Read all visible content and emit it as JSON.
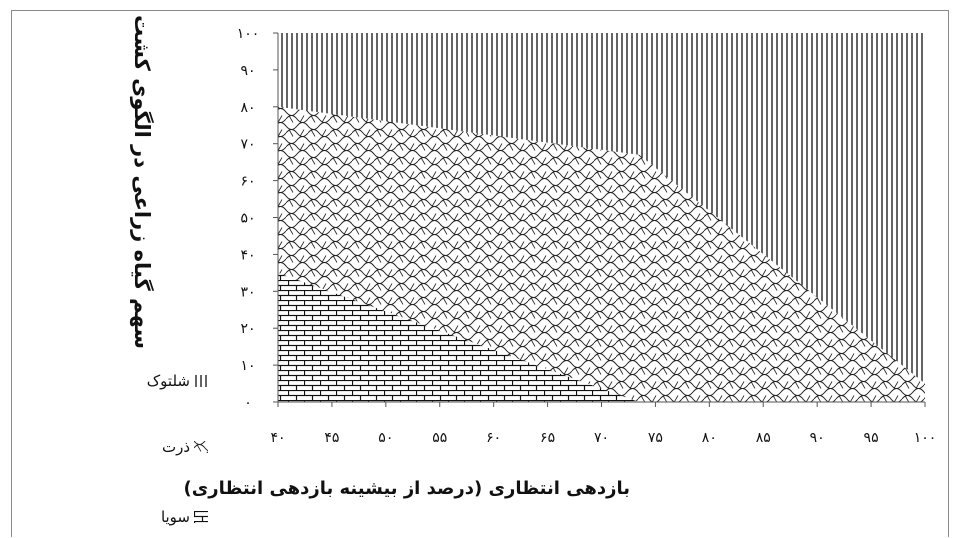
{
  "chart_data": {
    "type": "area",
    "stacked": true,
    "xlabel": "بازدهی انتظاری (درصد از بیشینه بازدهی انتظاری)",
    "ylabel": "سهم گیاه زراعی در الگوی کشت",
    "xlim": [
      40,
      100
    ],
    "ylim": [
      0,
      100
    ],
    "x_ticks": [
      40,
      45,
      50,
      55,
      60,
      65,
      70,
      75,
      80,
      85,
      90,
      95,
      100
    ],
    "y_ticks": [
      0,
      10,
      20,
      30,
      40,
      50,
      60,
      70,
      80,
      90,
      100
    ],
    "x_tick_labels": [
      "۴۰",
      "۴۵",
      "۵۰",
      "۵۵",
      "۶۰",
      "۶۵",
      "۷۰",
      "۷۵",
      "۸۰",
      "۸۵",
      "۹۰",
      "۹۵",
      "۱۰۰"
    ],
    "y_tick_labels": [
      "۰",
      "۱۰",
      "۲۰",
      "۳۰",
      "۴۰",
      "۵۰",
      "۶۰",
      "۷۰",
      "۸۰",
      "۹۰",
      "۱۰۰"
    ],
    "grid": false,
    "legend_position": "left",
    "series": [
      {
        "name": "سویا",
        "pattern": "brick",
        "x": [
          40,
          73.5,
          100
        ],
        "values": [
          35,
          0,
          0
        ]
      },
      {
        "name": "ذرت",
        "pattern": "scales",
        "x": [
          40,
          73.5,
          100
        ],
        "values": [
          45,
          67,
          5
        ]
      },
      {
        "name": "شلتوک",
        "pattern": "vertical-lines",
        "x": [
          40,
          73.5,
          100
        ],
        "values": [
          20,
          33,
          95
        ]
      }
    ]
  }
}
